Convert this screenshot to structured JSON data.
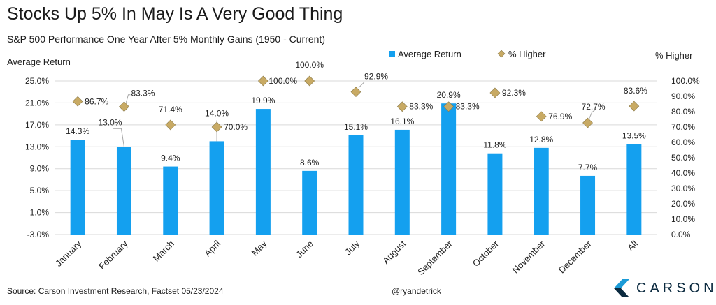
{
  "title": "Stocks Up 5% In May Is A Very Good Thing",
  "subtitle": "S&P 500 Performance One Year After 5% Monthly Gains (1950 - Current)",
  "footer": {
    "source": "Source: Carson Investment Research, Factset 05/23/2024",
    "handle": "@ryandetrick",
    "logo_text": "CARSON"
  },
  "colors": {
    "bar": "#14a0ef",
    "marker": "#c8aa64",
    "marker_stroke": "#8a7a4a",
    "grid": "#d9d9d9",
    "leader": "#a6a6a6"
  },
  "chart_data": {
    "type": "bar",
    "categories": [
      "January",
      "February",
      "March",
      "April",
      "May",
      "June",
      "July",
      "August",
      "September",
      "October",
      "November",
      "December",
      "All"
    ],
    "series": [
      {
        "name": "Average Return",
        "type": "bar",
        "axis": "left",
        "values": [
          14.3,
          13.0,
          9.4,
          14.0,
          19.9,
          8.6,
          15.1,
          16.1,
          20.9,
          11.8,
          12.8,
          7.7,
          13.5
        ],
        "labels": [
          "14.3%",
          "13.0%",
          "9.4%",
          "14.0%",
          "19.9%",
          "8.6%",
          "15.1%",
          "16.1%",
          "20.9%",
          "11.8%",
          "12.8%",
          "7.7%",
          "13.5%"
        ]
      },
      {
        "name": "% Higher",
        "type": "scatter",
        "marker": "diamond",
        "axis": "right",
        "values": [
          86.7,
          83.3,
          71.4,
          70.0,
          100.0,
          100.0,
          92.9,
          83.3,
          83.3,
          92.3,
          76.9,
          72.7,
          83.6
        ],
        "labels": [
          "86.7%",
          "83.3%",
          "71.4%",
          "70.0%",
          "100.0%",
          "100.0%",
          "92.9%",
          "83.3%",
          "83.3%",
          "92.3%",
          "76.9%",
          "72.7%",
          "83.6%"
        ]
      }
    ],
    "ylabel_left": "Average Return",
    "ylabel_right": "% Higher",
    "ylim_left": [
      -3.0,
      25.0
    ],
    "ylim_right": [
      0.0,
      100.0
    ],
    "yticks_left": [
      "25.0%",
      "21.0%",
      "17.0%",
      "13.0%",
      "9.0%",
      "5.0%",
      "1.0%",
      "-3.0%"
    ],
    "yticks_right": [
      "100.0%",
      "90.0%",
      "80.0%",
      "70.0%",
      "60.0%",
      "50.0%",
      "40.0%",
      "30.0%",
      "20.0%",
      "10.0%",
      "0.0%"
    ],
    "grid": true,
    "legend": "top-center"
  }
}
